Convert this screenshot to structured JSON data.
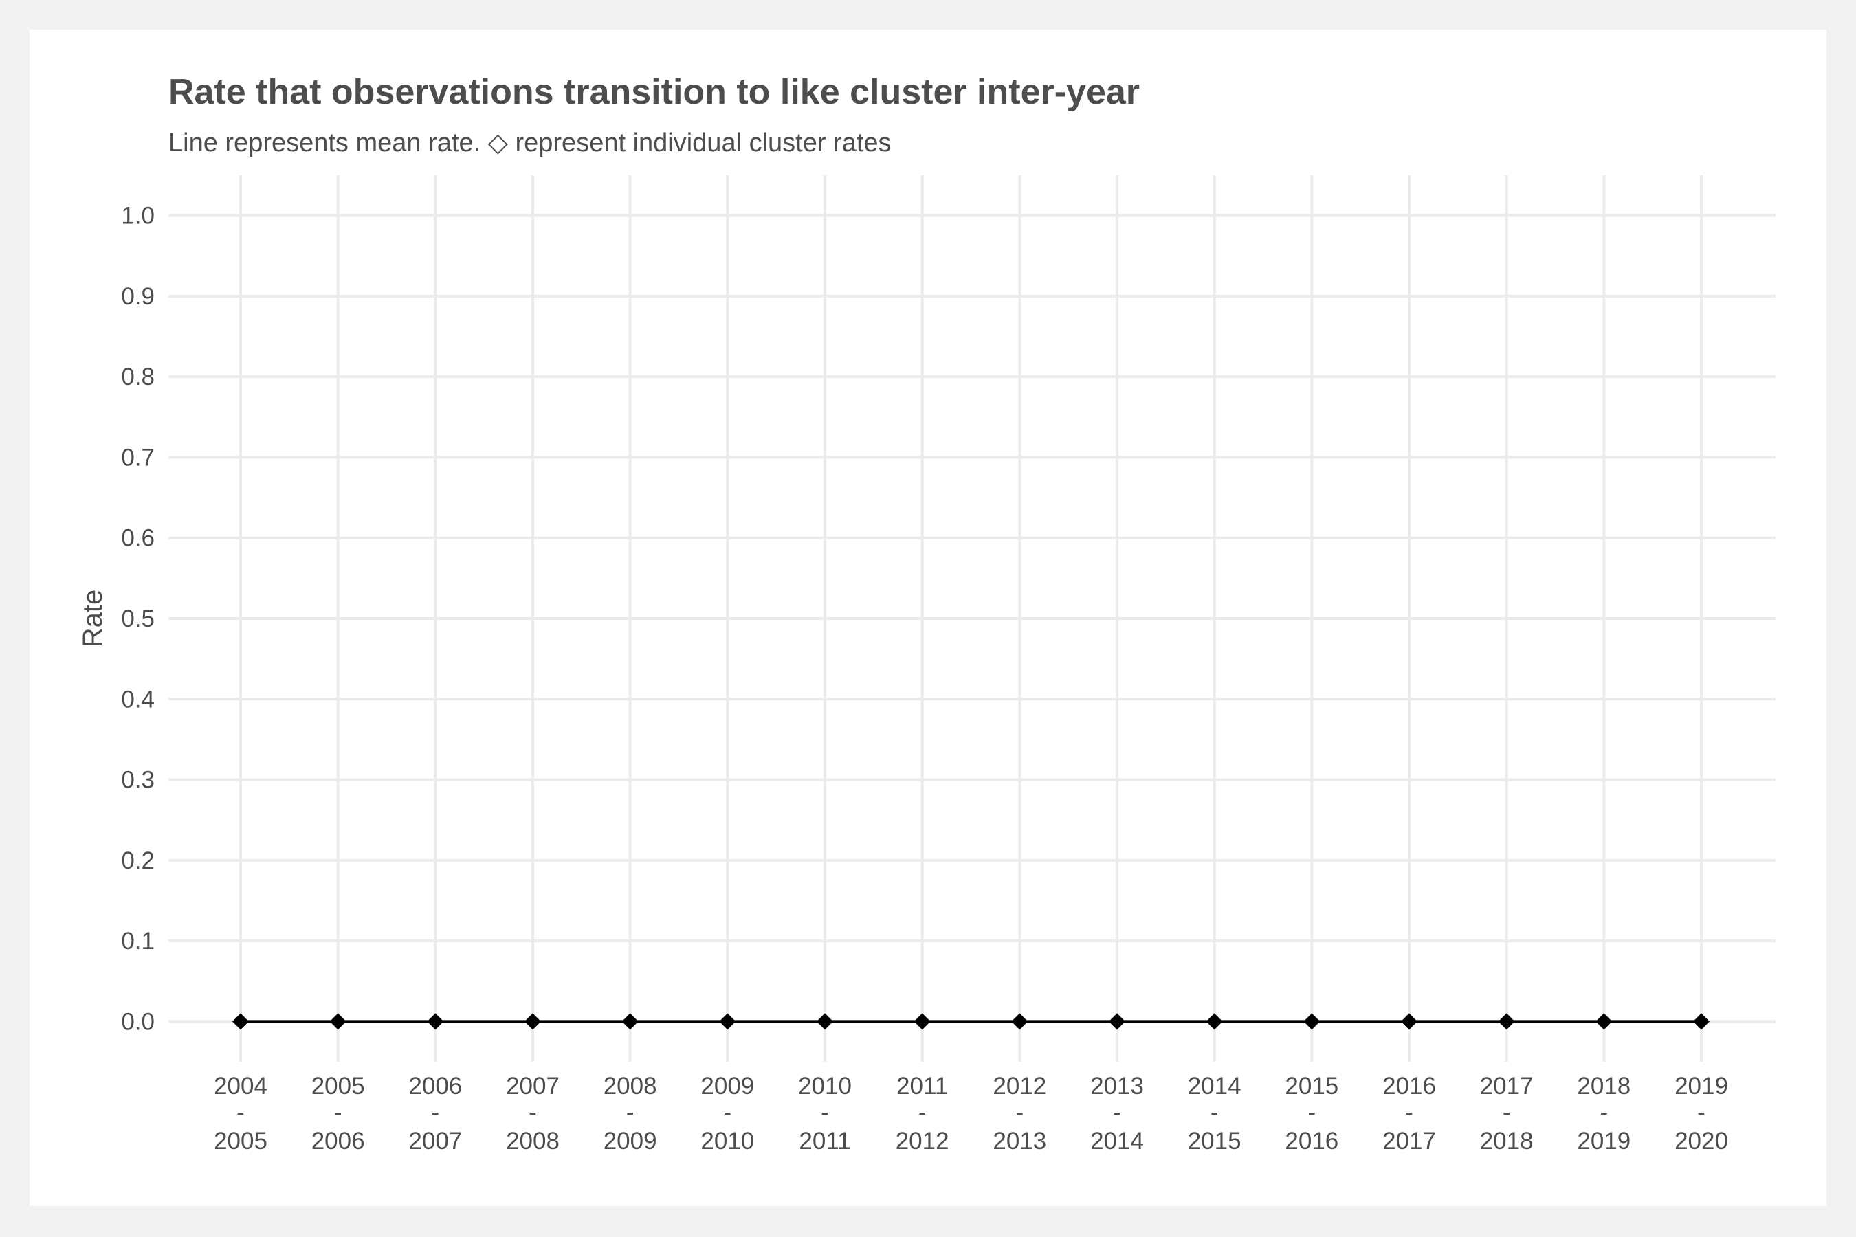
{
  "chart_data": {
    "type": "line",
    "title": "Rate that observations transition to like cluster inter-year",
    "subtitle": "Line represents mean rate. ◇ represent individual cluster rates",
    "xlabel": "",
    "ylabel": "Rate",
    "categories": [
      [
        "2004",
        "-",
        "2005"
      ],
      [
        "2005",
        "-",
        "2006"
      ],
      [
        "2006",
        "-",
        "2007"
      ],
      [
        "2007",
        "-",
        "2008"
      ],
      [
        "2008",
        "-",
        "2009"
      ],
      [
        "2009",
        "-",
        "2010"
      ],
      [
        "2010",
        "-",
        "2011"
      ],
      [
        "2011",
        "-",
        "2012"
      ],
      [
        "2012",
        "-",
        "2013"
      ],
      [
        "2013",
        "-",
        "2014"
      ],
      [
        "2014",
        "-",
        "2015"
      ],
      [
        "2015",
        "-",
        "2016"
      ],
      [
        "2016",
        "-",
        "2017"
      ],
      [
        "2017",
        "-",
        "2018"
      ],
      [
        "2018",
        "-",
        "2019"
      ],
      [
        "2019",
        "-",
        "2020"
      ]
    ],
    "series": [
      {
        "values": [
          0,
          0,
          0,
          0,
          0,
          0,
          0,
          0,
          0,
          0,
          0,
          0,
          0,
          0,
          0,
          0
        ],
        "color": "#000000",
        "marker": "diamond"
      }
    ],
    "ylim": [
      -0.05,
      1.05
    ],
    "yticks": [
      "0.0",
      "0.1",
      "0.2",
      "0.3",
      "0.4",
      "0.5",
      "0.6",
      "0.7",
      "0.8",
      "0.9",
      "1.0"
    ],
    "grid": true,
    "legend": "none"
  }
}
